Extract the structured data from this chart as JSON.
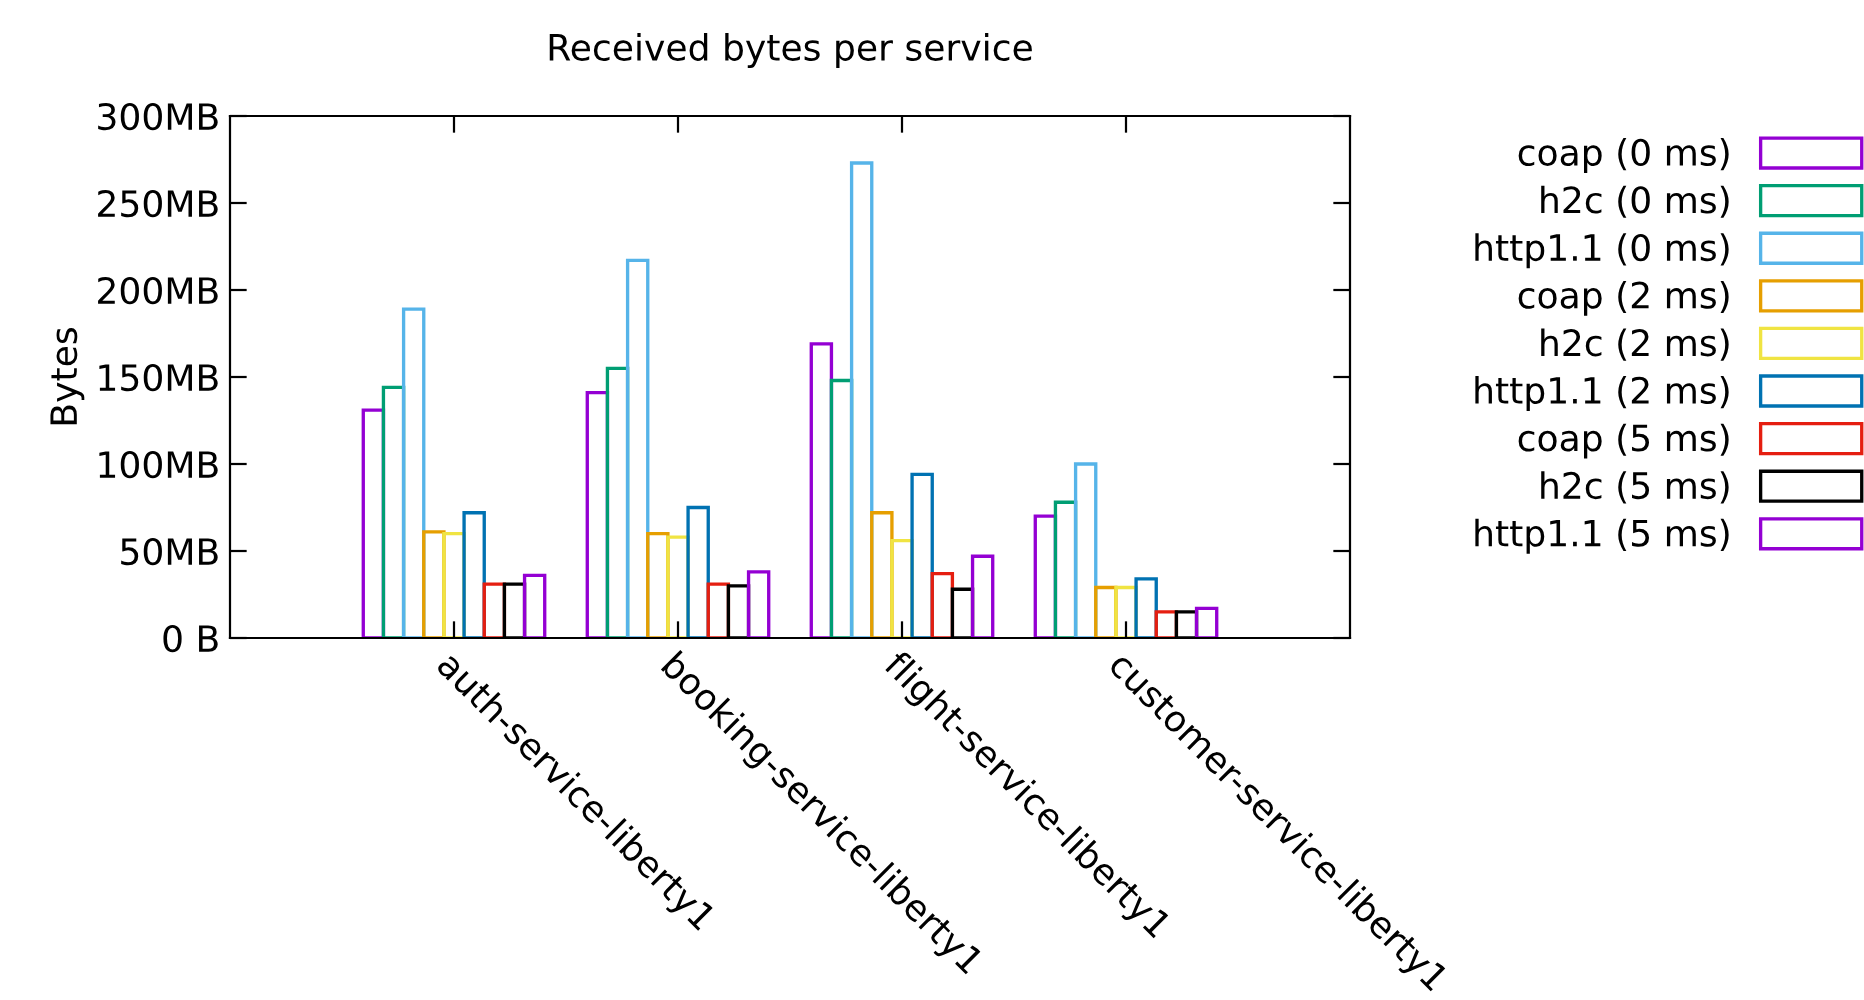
{
  "chart_data": {
    "type": "bar",
    "title": "Received bytes per service",
    "ylabel": "Bytes",
    "categories": [
      "auth-service-liberty1",
      "booking-service-liberty1",
      "flight-service-liberty1",
      "customer-service-liberty1"
    ],
    "series": [
      {
        "name": "coap (0 ms)",
        "color": "#9400d3",
        "values": [
          131,
          141,
          169,
          70
        ]
      },
      {
        "name": "h2c (0 ms)",
        "color": "#009e73",
        "values": [
          144,
          155,
          148,
          78
        ]
      },
      {
        "name": "http1.1 (0 ms)",
        "color": "#56b4e9",
        "values": [
          189,
          217,
          273,
          100
        ]
      },
      {
        "name": "coap (2 ms)",
        "color": "#e69f00",
        "values": [
          61,
          60,
          72,
          29
        ]
      },
      {
        "name": "h2c (2 ms)",
        "color": "#f0e442",
        "values": [
          60,
          58,
          56,
          29
        ]
      },
      {
        "name": "http1.1 (2 ms)",
        "color": "#0072b2",
        "values": [
          72,
          75,
          94,
          34
        ]
      },
      {
        "name": "coap (5 ms)",
        "color": "#e51e10",
        "values": [
          31,
          31,
          37,
          15
        ]
      },
      {
        "name": "h2c (5 ms)",
        "color": "#000000",
        "values": [
          31,
          30,
          28,
          15
        ]
      },
      {
        "name": "http1.1 (5 ms)",
        "color": "#9400d3",
        "values": [
          36,
          38,
          47,
          17
        ]
      }
    ],
    "ylim": [
      0,
      300
    ],
    "yticks": [
      {
        "value": 0,
        "label": "0 B"
      },
      {
        "value": 50,
        "label": "50MB"
      },
      {
        "value": 100,
        "label": "100MB"
      },
      {
        "value": 150,
        "label": "150MB"
      },
      {
        "value": 200,
        "label": "200MB"
      },
      {
        "value": 250,
        "label": "250MB"
      },
      {
        "value": 300,
        "label": "300MB"
      }
    ],
    "legend": "right",
    "grid": false
  }
}
